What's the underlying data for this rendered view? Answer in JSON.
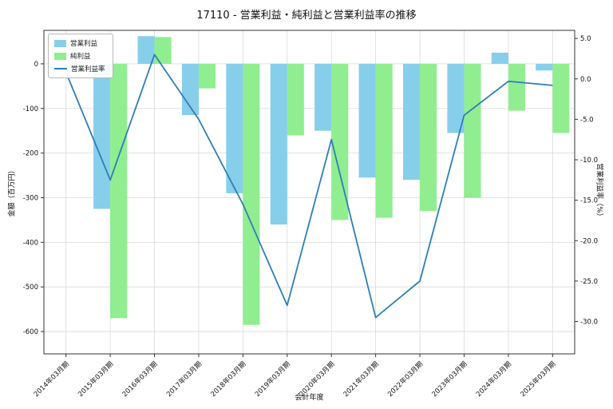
{
  "chart_data": {
    "type": "bar",
    "title": "17110 - 営業利益・純利益と営業利益率の推移",
    "xlabel": "会計年度",
    "ylabel_left": "金額（百万円）",
    "ylabel_right": "営業利益率（%）",
    "categories": [
      "2014年03月期",
      "2015年03月期",
      "2016年03月期",
      "2017年03月期",
      "2018年03月期",
      "2019年03月期",
      "2020年03月期",
      "2021年03月期",
      "2022年03月期",
      "2023年03月期",
      "2024年03月期",
      "2025年03月期"
    ],
    "series": [
      {
        "name": "営業利益",
        "type": "bar",
        "axis": "left",
        "color": "#87CEEB",
        "values": [
          -15,
          -325,
          62,
          -115,
          -290,
          -360,
          -150,
          -255,
          -260,
          -155,
          25,
          -15
        ]
      },
      {
        "name": "純利益",
        "type": "bar",
        "axis": "left",
        "color": "#90EE90",
        "values": [
          -8,
          -570,
          60,
          -55,
          -585,
          -160,
          -350,
          -345,
          -330,
          -300,
          -105,
          -155
        ]
      },
      {
        "name": "営業利益率",
        "type": "line",
        "axis": "right",
        "color": "#2E7EB8",
        "values": [
          0.8,
          -12.5,
          3.0,
          -5.0,
          -15.5,
          -28.0,
          -7.5,
          -29.5,
          -25.0,
          -4.5,
          -0.3,
          -0.8
        ]
      }
    ],
    "left_ticks": [
      0,
      -100,
      -200,
      -300,
      -400,
      -500,
      -600
    ],
    "right_ticks": [
      5.0,
      0.0,
      -5.0,
      -10.0,
      -15.0,
      -20.0,
      -25.0,
      -30.0
    ],
    "left_range": [
      -650,
      75
    ],
    "right_range": [
      -34,
      6
    ],
    "grid": true,
    "legend_position": "upper left",
    "colors": {
      "grid": "#d9d9d9",
      "frame": "#333333",
      "tick_text": "#111111"
    }
  }
}
